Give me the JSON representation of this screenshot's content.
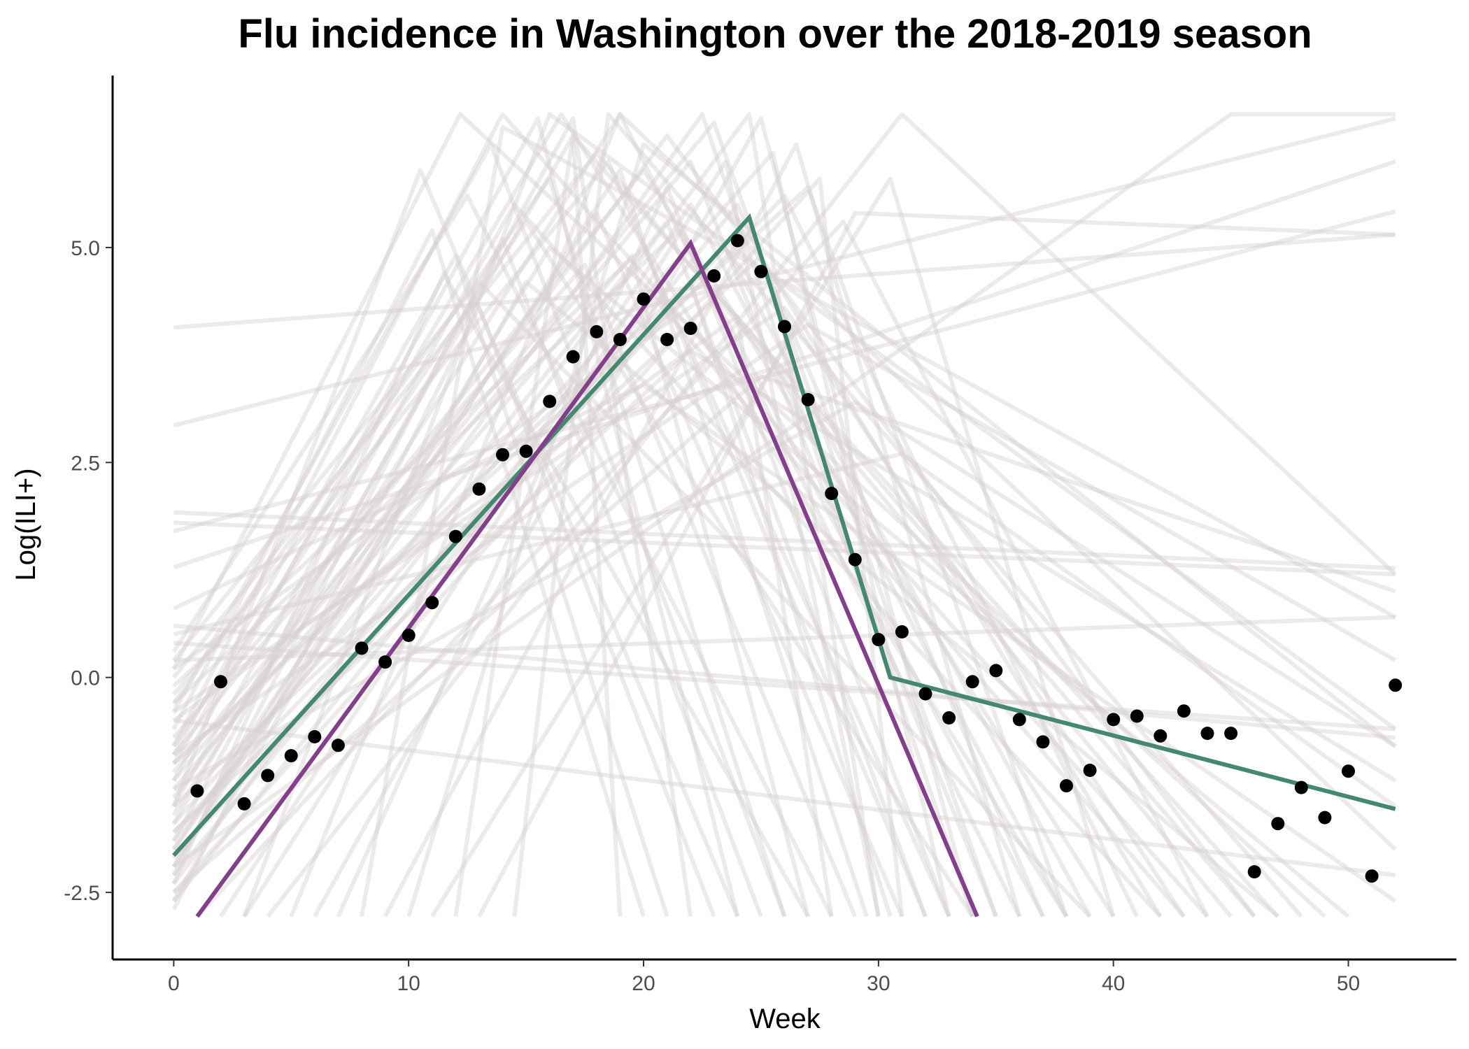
{
  "chart_data": {
    "type": "line",
    "title": "Flu incidence in Washington over the 2018-2019 season",
    "xlabel": "Week",
    "ylabel": "Log(ILI+)",
    "xlim": [
      -2.6,
      54.6
    ],
    "ylim": [
      -3.28,
      7.0
    ],
    "x_ticks": [
      0,
      10,
      20,
      30,
      40,
      50
    ],
    "x_tick_labels": [
      "0",
      "10",
      "20",
      "30",
      "40",
      "50"
    ],
    "y_ticks": [
      -2.5,
      0.0,
      2.5,
      5.0
    ],
    "y_tick_labels": [
      "-2.5",
      "0.0",
      "2.5",
      "5.0"
    ],
    "grid": false,
    "colors": {
      "points": "#000000",
      "green_line": "#448870",
      "purple_line": "#843f8c",
      "sample_lines": "#d8d0d0"
    },
    "observed_points": {
      "x": [
        1,
        2,
        3,
        4,
        5,
        6,
        7,
        8,
        9,
        10,
        11,
        12,
        13,
        14,
        15,
        16,
        17,
        18,
        19,
        20,
        21,
        22,
        23,
        24,
        25,
        26,
        27,
        28,
        29,
        30,
        31,
        32,
        33,
        34,
        35,
        36,
        37,
        38,
        39,
        40,
        41,
        42,
        43,
        44,
        45,
        46,
        47,
        48,
        49,
        50,
        51,
        52
      ],
      "y": [
        -1.32,
        -0.05,
        -1.47,
        -1.14,
        -0.91,
        -0.69,
        -0.79,
        0.34,
        0.18,
        0.49,
        0.87,
        1.64,
        2.19,
        2.59,
        2.63,
        3.21,
        3.73,
        4.02,
        3.93,
        4.4,
        3.93,
        4.06,
        4.67,
        5.08,
        4.72,
        4.08,
        3.23,
        2.14,
        1.37,
        0.44,
        0.53,
        -0.19,
        -0.47,
        -0.05,
        0.08,
        -0.49,
        -0.75,
        -1.26,
        -1.08,
        -0.49,
        -0.45,
        -0.68,
        -0.39,
        -0.65,
        -0.65,
        -2.26,
        -1.7,
        -1.28,
        -1.63,
        -1.09,
        -2.31,
        -0.09
      ]
    },
    "series": [
      {
        "x": [
          0,
          24.5,
          30.5,
          52
        ],
        "y": [
          -2.07,
          5.35,
          0.0,
          -1.53
        ]
      },
      {
        "x": [
          1,
          22,
          34.2
        ],
        "y": [
          -2.78,
          5.05,
          -2.78
        ]
      }
    ],
    "sample_lines": [
      {
        "x": [
          0,
          52
        ],
        "y": [
          4.07,
          5.15
        ]
      },
      {
        "x": [
          0,
          52
        ],
        "y": [
          2.93,
          6.5
        ]
      },
      {
        "x": [
          0,
          52
        ],
        "y": [
          1.92,
          1.27
        ]
      },
      {
        "x": [
          0,
          52
        ],
        "y": [
          1.7,
          5.42
        ]
      },
      {
        "x": [
          0,
          52
        ],
        "y": [
          1.28,
          6.0
        ]
      },
      {
        "x": [
          0,
          52
        ],
        "y": [
          1.8,
          1.2
        ]
      },
      {
        "x": [
          0,
          52
        ],
        "y": [
          0.2,
          0.7
        ]
      },
      {
        "x": [
          0,
          52
        ],
        "y": [
          0.6,
          -0.7
        ]
      },
      {
        "x": [
          0,
          52
        ],
        "y": [
          -0.5,
          -2.3
        ]
      },
      {
        "x": [
          0,
          52
        ],
        "y": [
          0.4,
          -0.6
        ]
      },
      {
        "x": [
          0,
          12.2,
          49
        ],
        "y": [
          0.1,
          6.55,
          -2.78
        ]
      },
      {
        "x": [
          0,
          14,
          44
        ],
        "y": [
          -0.8,
          6.55,
          -2.78
        ]
      },
      {
        "x": [
          0,
          16.5,
          38
        ],
        "y": [
          -1.0,
          6.55,
          -2.78
        ]
      },
      {
        "x": [
          0,
          19,
          36
        ],
        "y": [
          -1.6,
          6.55,
          -2.78
        ]
      },
      {
        "x": [
          0,
          22.5,
          34
        ],
        "y": [
          -2.0,
          6.55,
          -2.78
        ]
      },
      {
        "x": [
          0,
          24.5,
          30
        ],
        "y": [
          -2.4,
          6.55,
          -2.78
        ]
      },
      {
        "x": [
          0,
          13.5,
          26
        ],
        "y": [
          -0.4,
          6.2,
          -2.78
        ]
      },
      {
        "x": [
          0,
          15.5,
          24
        ],
        "y": [
          -1.2,
          6.5,
          -2.78
        ]
      },
      {
        "x": [
          0,
          17,
          22
        ],
        "y": [
          -1.9,
          6.5,
          -2.78
        ]
      },
      {
        "x": [
          0,
          18.5,
          32
        ],
        "y": [
          -0.2,
          6.0,
          -2.78
        ]
      },
      {
        "x": [
          0,
          20,
          40
        ],
        "y": [
          -0.9,
          5.9,
          -2.78
        ]
      },
      {
        "x": [
          0,
          21,
          46
        ],
        "y": [
          -1.4,
          6.3,
          -2.78
        ]
      },
      {
        "x": [
          0,
          23,
          35
        ],
        "y": [
          -1.1,
          6.45,
          -2.78
        ]
      },
      {
        "x": [
          0,
          25.5,
          33
        ],
        "y": [
          -1.7,
          6.1,
          -2.78
        ]
      },
      {
        "x": [
          0,
          27.5,
          31
        ],
        "y": [
          -2.5,
          5.8,
          -2.78
        ]
      },
      {
        "x": [
          0,
          11,
          20
        ],
        "y": [
          -0.6,
          5.2,
          -2.78
        ]
      },
      {
        "x": [
          0,
          12.5,
          28
        ],
        "y": [
          0.3,
          5.6,
          -2.78
        ]
      },
      {
        "x": [
          0,
          14.5,
          42
        ],
        "y": [
          -1.5,
          5.5,
          -2.78
        ]
      },
      {
        "x": [
          0,
          16,
          50
        ],
        "y": [
          -2.2,
          5.0,
          -2.78
        ]
      },
      {
        "x": [
          0,
          17.5,
          29
        ],
        "y": [
          -0.7,
          4.8,
          -2.78
        ]
      },
      {
        "x": [
          0,
          19.5,
          27
        ],
        "y": [
          -1.3,
          4.9,
          -2.78
        ]
      },
      {
        "x": [
          0,
          21.5,
          37
        ],
        "y": [
          -0.3,
          5.2,
          -2.78
        ]
      },
      {
        "x": [
          0,
          23.5,
          39
        ],
        "y": [
          -2.1,
          5.0,
          -2.78
        ]
      },
      {
        "x": [
          0,
          26,
          41
        ],
        "y": [
          -1.8,
          5.6,
          -2.78
        ]
      },
      {
        "x": [
          0,
          18,
          45
        ],
        "y": [
          0.0,
          6.1,
          -2.78
        ]
      },
      {
        "x": [
          0,
          15,
          47
        ],
        "y": [
          -2.6,
          4.6,
          -2.78
        ]
      },
      {
        "x": [
          0,
          20.5,
          43
        ],
        "y": [
          -2.3,
          4.4,
          -2.78
        ]
      },
      {
        "x": [
          0,
          22,
          30.5
        ],
        "y": [
          -1.0,
          4.6,
          -2.78
        ]
      },
      {
        "x": [
          0,
          24,
          28
        ],
        "y": [
          -0.5,
          4.2,
          -2.78
        ]
      },
      {
        "x": [
          0,
          13,
          23
        ],
        "y": [
          -2.7,
          4.3,
          -2.78
        ]
      },
      {
        "x": [
          3,
          16,
          52
        ],
        "y": [
          -2.78,
          6.55,
          -0.6
        ]
      },
      {
        "x": [
          5,
          19,
          52
        ],
        "y": [
          -2.78,
          6.55,
          -2.0
        ]
      },
      {
        "x": [
          8,
          14,
          52
        ],
        "y": [
          -2.78,
          6.4,
          0.7
        ]
      },
      {
        "x": [
          10,
          20,
          52
        ],
        "y": [
          -2.78,
          6.2,
          -0.8
        ]
      },
      {
        "x": [
          12,
          17,
          47
        ],
        "y": [
          -2.78,
          6.3,
          -2.78
        ]
      },
      {
        "x": [
          2,
          22,
          38
        ],
        "y": [
          -2.78,
          5.5,
          -2.78
        ]
      },
      {
        "x": [
          6,
          25,
          34
        ],
        "y": [
          -2.78,
          6.5,
          -2.78
        ]
      },
      {
        "x": [
          9,
          26.5,
          36
        ],
        "y": [
          -2.78,
          6.2,
          -2.78
        ]
      },
      {
        "x": [
          4,
          31,
          52
        ],
        "y": [
          -2.78,
          6.55,
          1.2
        ]
      },
      {
        "x": [
          7,
          21,
          33
        ],
        "y": [
          -2.78,
          5.7,
          -2.78
        ]
      },
      {
        "x": [
          14.5,
          18.5,
          48
        ],
        "y": [
          -2.78,
          6.55,
          -2.78
        ]
      },
      {
        "x": [
          11,
          30.5,
          40
        ],
        "y": [
          -2.78,
          5.8,
          -2.78
        ]
      },
      {
        "x": [
          1,
          28.5,
          44
        ],
        "y": [
          -2.78,
          5.3,
          -2.78
        ]
      },
      {
        "x": [
          3,
          23.5,
          30
        ],
        "y": [
          -2.78,
          6.0,
          -2.78
        ]
      },
      {
        "x": [
          0,
          45,
          52
        ],
        "y": [
          -2.2,
          6.55,
          6.55
        ]
      },
      {
        "x": [
          13,
          29,
          52
        ],
        "y": [
          -2.78,
          5.4,
          5.15
        ]
      },
      {
        "x": [
          0,
          29,
          52
        ],
        "y": [
          -1.3,
          3.2,
          -0.8
        ]
      },
      {
        "x": [
          0,
          27,
          52
        ],
        "y": [
          -0.9,
          4.1,
          0.2
        ]
      },
      {
        "x": [
          0,
          31,
          52
        ],
        "y": [
          0.5,
          2.6,
          -1.5
        ]
      },
      {
        "x": [
          0,
          22,
          52
        ],
        "y": [
          -1.8,
          3.8,
          -1.2
        ]
      },
      {
        "x": [
          0,
          20,
          52
        ],
        "y": [
          0.8,
          3.4,
          -2.6
        ]
      },
      {
        "x": [
          0,
          25,
          52
        ],
        "y": [
          -2.5,
          3.5,
          1.0
        ]
      },
      {
        "x": [
          0,
          10.5,
          24
        ],
        "y": [
          -1.5,
          5.9,
          -2.78
        ]
      },
      {
        "x": [
          0,
          12,
          21
        ],
        "y": [
          -0.9,
          4.9,
          -2.78
        ]
      },
      {
        "x": [
          0,
          14,
          25
        ],
        "y": [
          -2.3,
          5.1,
          -2.78
        ]
      },
      {
        "x": [
          0,
          16,
          26
        ],
        "y": [
          -0.3,
          5.8,
          -2.78
        ]
      },
      {
        "x": [
          0,
          18,
          31
        ],
        "y": [
          -2.0,
          5.4,
          -2.78
        ]
      },
      {
        "x": [
          0,
          20,
          33
        ],
        "y": [
          -0.1,
          5.0,
          -2.78
        ]
      },
      {
        "x": [
          0,
          22,
          35
        ],
        "y": [
          -1.2,
          6.0,
          -2.78
        ]
      },
      {
        "x": [
          0,
          24,
          37
        ],
        "y": [
          -2.6,
          5.5,
          -2.78
        ]
      },
      {
        "x": [
          0,
          26,
          43
        ],
        "y": [
          -0.4,
          4.3,
          -2.78
        ]
      },
      {
        "x": [
          0,
          17,
          19
        ],
        "y": [
          -1.7,
          6.3,
          -2.78
        ]
      },
      {
        "x": [
          0,
          19,
          29.5
        ],
        "y": [
          -2.2,
          5.9,
          -2.78
        ]
      },
      {
        "x": [
          0,
          21,
          32
        ],
        "y": [
          -1.9,
          5.3,
          -2.78
        ]
      },
      {
        "x": [
          0,
          15,
          34
        ],
        "y": [
          -0.8,
          5.3,
          -2.78
        ]
      },
      {
        "x": [
          0,
          13,
          39
        ],
        "y": [
          0.2,
          4.6,
          -2.78
        ]
      },
      {
        "x": [
          0,
          11.5,
          27
        ],
        "y": [
          -2.4,
          4.7,
          -2.78
        ]
      },
      {
        "x": [
          0,
          23,
          46
        ],
        "y": [
          0.1,
          4.5,
          -2.78
        ]
      },
      {
        "x": [
          0,
          25,
          42
        ],
        "y": [
          -1.5,
          4.9,
          -2.78
        ]
      },
      {
        "x": [
          0,
          27,
          38
        ],
        "y": [
          -1.0,
          5.7,
          -2.78
        ]
      }
    ]
  }
}
